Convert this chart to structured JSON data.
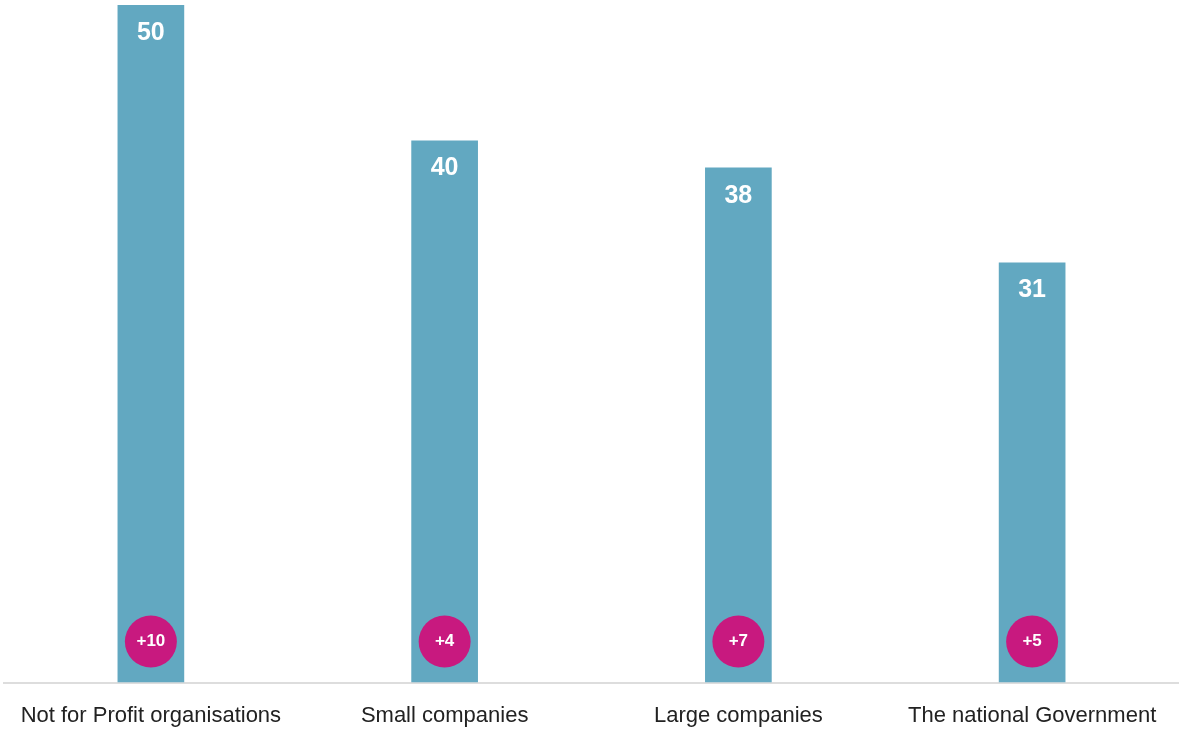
{
  "chart_data": {
    "type": "bar",
    "categories": [
      "Not for Profit organisations",
      "Small companies",
      "Large companies",
      "The national Government"
    ],
    "values": [
      50,
      40,
      38,
      31
    ],
    "color": "#62a8c1",
    "data_labels": true,
    "annotations": [
      "+10",
      "+4",
      "+7",
      "+5"
    ]
  }
}
